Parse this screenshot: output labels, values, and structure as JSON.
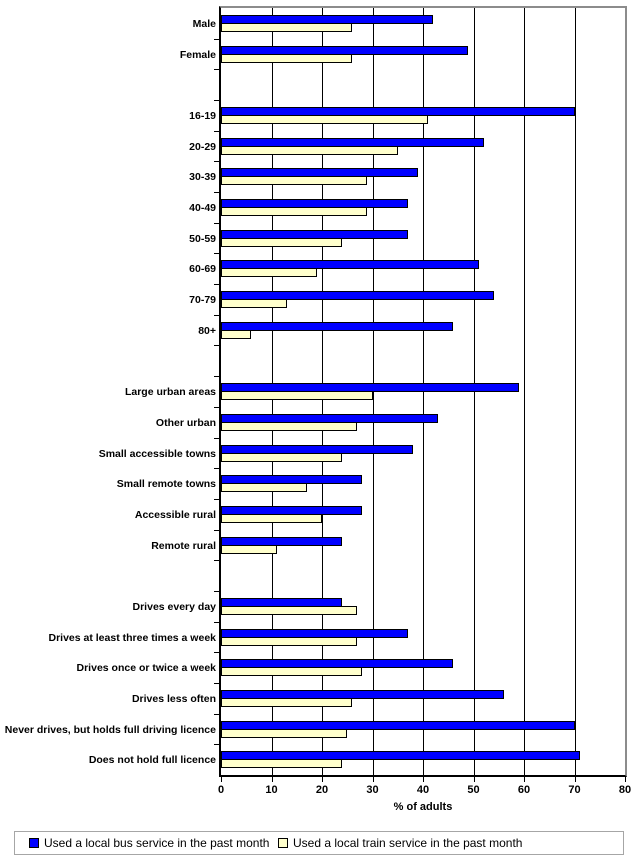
{
  "chart_data": {
    "type": "bar",
    "orientation": "horizontal",
    "title": "",
    "xlabel": "% of adults",
    "ylabel": "",
    "xlim": [
      0,
      80
    ],
    "xticks": [
      0,
      10,
      20,
      30,
      40,
      50,
      60,
      70,
      80
    ],
    "grid": true,
    "legend_position": "bottom",
    "series": [
      {
        "name": "Used a local bus service in the past month",
        "color": "#0000FF"
      },
      {
        "name": "Used a local train service in the past month",
        "color": "#FFFFCC"
      }
    ],
    "groups": [
      {
        "id": "gender",
        "rows": [
          {
            "category": "Male",
            "values": [
              42,
              26
            ]
          },
          {
            "category": "Female",
            "values": [
              49,
              26
            ]
          }
        ]
      },
      {
        "id": "age",
        "rows": [
          {
            "category": "16-19",
            "values": [
              70,
              41
            ]
          },
          {
            "category": "20-29",
            "values": [
              52,
              35
            ]
          },
          {
            "category": "30-39",
            "values": [
              39,
              29
            ]
          },
          {
            "category": "40-49",
            "values": [
              37,
              29
            ]
          },
          {
            "category": "50-59",
            "values": [
              37,
              24
            ]
          },
          {
            "category": "60-69",
            "values": [
              51,
              19
            ]
          },
          {
            "category": "70-79",
            "values": [
              54,
              13
            ]
          },
          {
            "category": "80+",
            "values": [
              46,
              6
            ]
          }
        ]
      },
      {
        "id": "area-type",
        "rows": [
          {
            "category": "Large urban areas",
            "values": [
              59,
              30
            ]
          },
          {
            "category": "Other urban",
            "values": [
              43,
              27
            ]
          },
          {
            "category": "Small accessible towns",
            "values": [
              38,
              24
            ]
          },
          {
            "category": "Small remote towns",
            "values": [
              28,
              17
            ]
          },
          {
            "category": "Accessible rural",
            "values": [
              28,
              20
            ]
          },
          {
            "category": "Remote rural",
            "values": [
              24,
              11
            ]
          }
        ]
      },
      {
        "id": "driving-frequency",
        "rows": [
          {
            "category": "Drives every day",
            "values": [
              24,
              27
            ]
          },
          {
            "category": "Drives at least three times a week",
            "values": [
              37,
              27
            ]
          },
          {
            "category": "Drives once or twice a week",
            "values": [
              46,
              28
            ]
          },
          {
            "category": "Drives less often",
            "values": [
              56,
              26
            ]
          },
          {
            "category": "Never drives, but holds full driving licence",
            "values": [
              70,
              25
            ]
          },
          {
            "category": "Does not hold full licence",
            "values": [
              71,
              24
            ]
          }
        ]
      }
    ]
  },
  "colors": {
    "bus_bar": "#0000FF",
    "train_bar": "#FFFFCC",
    "bar_border": "#000000",
    "gridline": "#000000",
    "frame": "#8C8C8C",
    "axis": "#000000",
    "legend_border": "#A6A6A6",
    "background": "#FFFFFF"
  }
}
